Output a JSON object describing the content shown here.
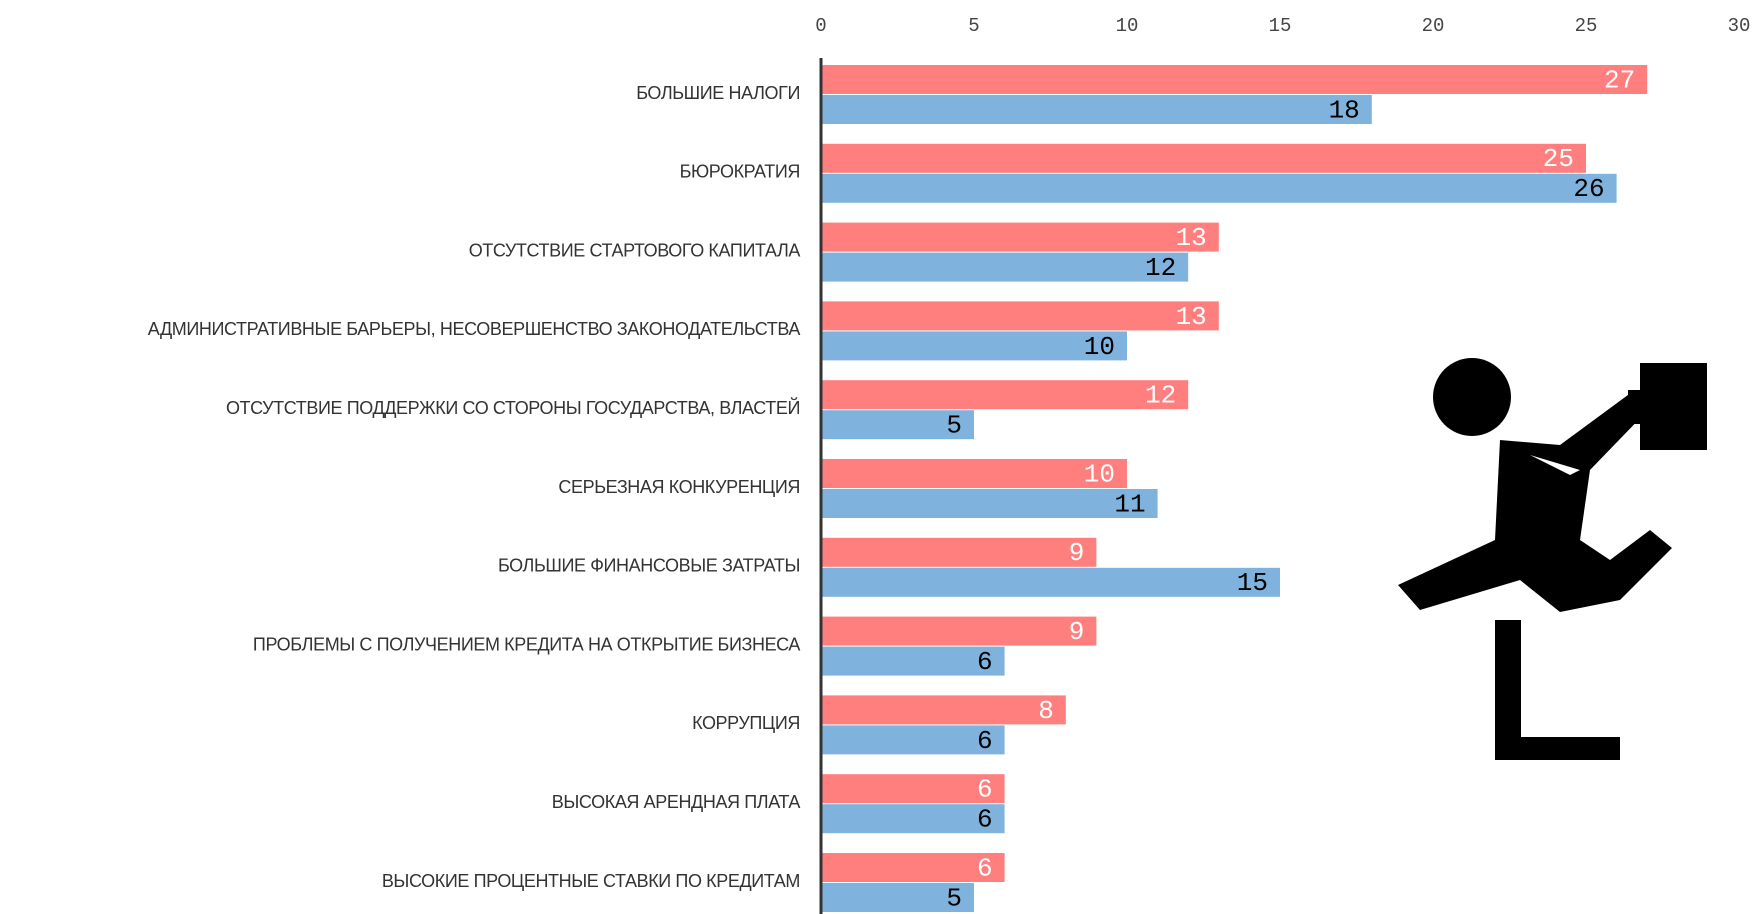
{
  "chart_data": {
    "type": "bar",
    "orientation": "horizontal",
    "categories": [
      "БОЛЬШИЕ НАЛОГИ",
      "БЮРОКРАТИЯ",
      "ОТСУТСТВИЕ СТАРТОВОГО КАПИТАЛА",
      "АДМИНИСТРАТИВНЫЕ БАРЬЕРЫ, НЕСОВЕРШЕНСТВО ЗАКОНОДАТЕЛЬСТВА",
      "ОТСУТСТВИЕ ПОДДЕРЖКИ СО СТОРОНЫ ГОСУДАРСТВА,  ВЛАСТЕЙ",
      "СЕРЬЕЗНАЯ КОНКУРЕНЦИЯ",
      "БОЛЬШИЕ ФИНАНСОВЫЕ ЗАТРАТЫ",
      "ПРОБЛЕМЫ С ПОЛУЧЕНИЕМ КРЕДИТА НА ОТКРЫТИЕ БИЗНЕСА",
      "КОРРУПЦИЯ",
      "ВЫСОКАЯ АРЕНДНАЯ ПЛАТА",
      "ВЫСОКИЕ ПРОЦЕНТНЫЕ СТАВКИ ПО КРЕДИТАМ"
    ],
    "series": [
      {
        "color": "#ff7f7f",
        "label_color": "#ffffff",
        "values": [
          27,
          25,
          13,
          13,
          12,
          10,
          9,
          9,
          8,
          6,
          6
        ]
      },
      {
        "color": "#7fb2dc",
        "label_color": "#000000",
        "values": [
          18,
          26,
          12,
          10,
          5,
          11,
          15,
          6,
          6,
          6,
          5
        ]
      }
    ],
    "xlim": [
      0,
      30
    ],
    "xticks": [
      0,
      5,
      10,
      15,
      20,
      25,
      30
    ]
  }
}
